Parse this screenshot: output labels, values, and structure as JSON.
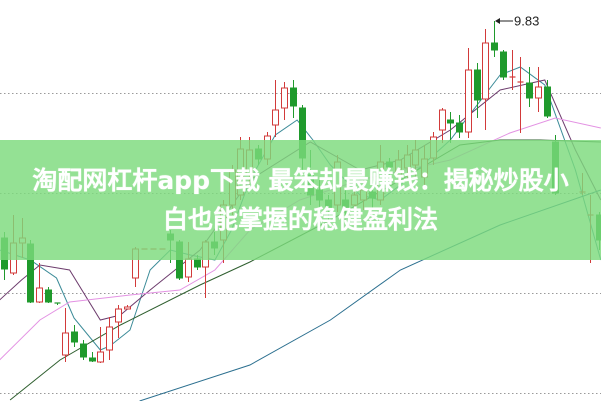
{
  "banner": {
    "line1": "淘配网杠杆app下载 最笨却最赚钱：揭秘炒股小",
    "line2": "白也能掌握的稳健盈利法"
  },
  "chart_data": {
    "type": "candlestick",
    "grid": "horizontal dotted",
    "ylim": [
      6.03,
      10.04
    ],
    "gridlines": [
      9.11,
      8.11,
      7.11,
      6.11
    ],
    "colors": {
      "up": "#d23a3a",
      "down": "#1f9a2c",
      "grid": "#9a9a9a",
      "banner": "#7dda7d"
    },
    "high_annotation": {
      "index": 56,
      "label": "9.83"
    },
    "candles_ohlc": [
      [
        7.66,
        7.72,
        7.24,
        7.35
      ],
      [
        7.31,
        7.89,
        7.29,
        7.61
      ],
      [
        7.61,
        7.86,
        7.46,
        7.66
      ],
      [
        7.6,
        7.64,
        7.01,
        7.02
      ],
      [
        7.02,
        7.41,
        7.01,
        7.16
      ],
      [
        7.14,
        7.17,
        7.01,
        7.02
      ],
      [
        7.01,
        7.01,
        6.99,
        7.0
      ],
      [
        6.49,
        6.96,
        6.42,
        6.71
      ],
      [
        6.72,
        6.79,
        6.57,
        6.62
      ],
      [
        6.6,
        6.64,
        6.44,
        6.47
      ],
      [
        6.46,
        6.52,
        6.42,
        6.43
      ],
      [
        6.42,
        6.77,
        6.41,
        6.52
      ],
      [
        6.54,
        6.87,
        6.44,
        6.77
      ],
      [
        6.82,
        6.99,
        6.66,
        6.95
      ],
      [
        6.95,
        6.99,
        6.95,
        6.97
      ],
      [
        7.26,
        7.57,
        7.17,
        7.55
      ],
      [
        7.55,
        7.55,
        7.55,
        7.55
      ],
      [
        7.55,
        7.55,
        7.55,
        7.55
      ],
      [
        7.55,
        7.55,
        7.55,
        7.55
      ],
      [
        7.7,
        7.74,
        7.41,
        7.64
      ],
      [
        7.62,
        7.64,
        7.24,
        7.26
      ],
      [
        7.27,
        7.62,
        7.22,
        7.45
      ],
      [
        7.45,
        7.49,
        7.34,
        7.37
      ],
      [
        7.37,
        7.64,
        7.06,
        7.62
      ],
      [
        7.62,
        7.72,
        7.49,
        7.56
      ],
      [
        7.64,
        8.04,
        7.41,
        7.99
      ],
      [
        7.99,
        8.39,
        7.89,
        8.34
      ],
      [
        8.09,
        8.67,
        8.04,
        8.55
      ],
      [
        8.29,
        8.67,
        8.19,
        8.54
      ],
      [
        8.55,
        8.59,
        8.39,
        8.45
      ],
      [
        8.45,
        8.72,
        8.39,
        8.68
      ],
      [
        8.79,
        9.24,
        8.67,
        8.94
      ],
      [
        8.96,
        9.22,
        8.84,
        9.16
      ],
      [
        9.16,
        9.24,
        8.86,
        8.98
      ],
      [
        8.96,
        8.99,
        8.32,
        8.46
      ],
      [
        8.29,
        8.54,
        7.99,
        8.09
      ],
      [
        8.14,
        8.24,
        7.89,
        8.04
      ],
      [
        8.04,
        8.09,
        7.82,
        7.94
      ],
      [
        7.99,
        8.49,
        7.92,
        8.42
      ],
      [
        8.04,
        8.14,
        7.84,
        7.94
      ],
      [
        7.99,
        8.19,
        7.89,
        8.09
      ],
      [
        8.04,
        8.24,
        7.94,
        8.14
      ],
      [
        8.12,
        8.19,
        7.94,
        8.06
      ],
      [
        8.04,
        8.59,
        7.99,
        8.42
      ],
      [
        8.42,
        8.46,
        8.14,
        8.37
      ],
      [
        8.29,
        8.54,
        8.19,
        8.44
      ],
      [
        8.36,
        8.59,
        8.24,
        8.49
      ],
      [
        8.39,
        8.64,
        8.26,
        8.54
      ],
      [
        8.27,
        8.59,
        8.19,
        8.45
      ],
      [
        8.46,
        8.72,
        8.39,
        8.67
      ],
      [
        8.74,
        8.96,
        8.61,
        8.94
      ],
      [
        8.84,
        8.92,
        8.61,
        8.81
      ],
      [
        8.81,
        8.89,
        8.66,
        8.72
      ],
      [
        8.72,
        9.56,
        8.66,
        9.34
      ],
      [
        9.34,
        9.41,
        8.86,
        9.04
      ],
      [
        9.05,
        9.75,
        8.74,
        9.61
      ],
      [
        9.61,
        9.83,
        9.47,
        9.54
      ],
      [
        9.52,
        9.54,
        9.24,
        9.27
      ],
      [
        9.26,
        9.54,
        9.14,
        9.27
      ],
      [
        9.21,
        9.47,
        8.71,
        9.22
      ],
      [
        9.21,
        9.37,
        8.97,
        9.06
      ],
      [
        9.06,
        9.37,
        8.92,
        9.17
      ],
      [
        9.17,
        9.24,
        8.86,
        8.88
      ],
      [
        8.62,
        8.69,
        8.09,
        8.11
      ],
      null,
      null,
      [
        8.12,
        8.31,
        8.09,
        8.12
      ],
      [
        7.89,
        8.09,
        7.41,
        7.89
      ],
      [
        7.89,
        7.92,
        7.54,
        7.64
      ]
    ],
    "moving_averages": [
      {
        "color": "#3b8b98",
        "points": [
          [
            -0.5,
            7.54
          ],
          [
            3,
            7.44
          ],
          [
            6,
            7.26
          ],
          [
            8,
            6.86
          ],
          [
            11,
            6.54
          ],
          [
            12.1,
            6.58
          ],
          [
            14.4,
            6.74
          ],
          [
            16.7,
            7.34
          ],
          [
            19,
            7.54
          ],
          [
            21.3,
            7.49
          ],
          [
            24.1,
            7.44
          ],
          [
            26,
            7.74
          ],
          [
            28.1,
            8.24
          ],
          [
            31,
            8.69
          ],
          [
            33.5,
            8.84
          ],
          [
            35.3,
            8.64
          ],
          [
            37.3,
            8.39
          ],
          [
            40.7,
            8.09
          ],
          [
            43,
            8.04
          ],
          [
            45.3,
            8.19
          ],
          [
            51,
            8.64
          ],
          [
            56.7,
            9.29
          ],
          [
            59,
            9.37
          ],
          [
            61.8,
            9.19
          ],
          [
            65.3,
            8.34
          ],
          [
            68.2,
            7.44
          ]
        ]
      },
      {
        "color": "#6d3c6d",
        "points": [
          [
            -0.5,
            7.04
          ],
          [
            2,
            7.24
          ],
          [
            4.1,
            7.39
          ],
          [
            7.5,
            7.34
          ],
          [
            11,
            6.84
          ],
          [
            13.3,
            6.89
          ],
          [
            16.7,
            7.14
          ],
          [
            22.4,
            7.54
          ],
          [
            28.1,
            8.24
          ],
          [
            35,
            8.62
          ],
          [
            40.7,
            8.34
          ],
          [
            45.3,
            8.44
          ],
          [
            51,
            8.74
          ],
          [
            56.7,
            9.14
          ],
          [
            61.8,
            9.24
          ],
          [
            65.3,
            8.54
          ],
          [
            68.2,
            8.04
          ]
        ]
      },
      {
        "color": "#e392e3",
        "points": [
          [
            -0.5,
            6.44
          ],
          [
            4.1,
            6.84
          ],
          [
            7.5,
            7.02
          ],
          [
            14.4,
            7.09
          ],
          [
            20.1,
            7.14
          ],
          [
            24.1,
            7.34
          ],
          [
            28.1,
            7.74
          ],
          [
            33.8,
            8.04
          ],
          [
            40.7,
            8.24
          ],
          [
            51,
            8.44
          ],
          [
            57.8,
            8.71
          ],
          [
            63,
            8.86
          ],
          [
            68.2,
            8.76
          ]
        ]
      },
      {
        "color": "#2f5f2f",
        "points": [
          [
            0.7,
            6.04
          ],
          [
            6.4,
            6.44
          ],
          [
            13.3,
            6.79
          ],
          [
            22.4,
            7.19
          ],
          [
            28.1,
            7.42
          ],
          [
            37.3,
            7.84
          ],
          [
            45.3,
            8.24
          ],
          [
            52.1,
            8.59
          ],
          [
            56.7,
            8.64
          ],
          [
            61.3,
            8.64
          ],
          [
            68.2,
            8.62
          ]
        ]
      },
      {
        "color": "#2b6f8f",
        "points": [
          [
            15.5,
            6.03
          ],
          [
            28.1,
            6.39
          ],
          [
            37.3,
            6.84
          ],
          [
            45.3,
            7.34
          ],
          [
            56.7,
            7.79
          ],
          [
            68.2,
            8.14
          ]
        ]
      }
    ]
  }
}
